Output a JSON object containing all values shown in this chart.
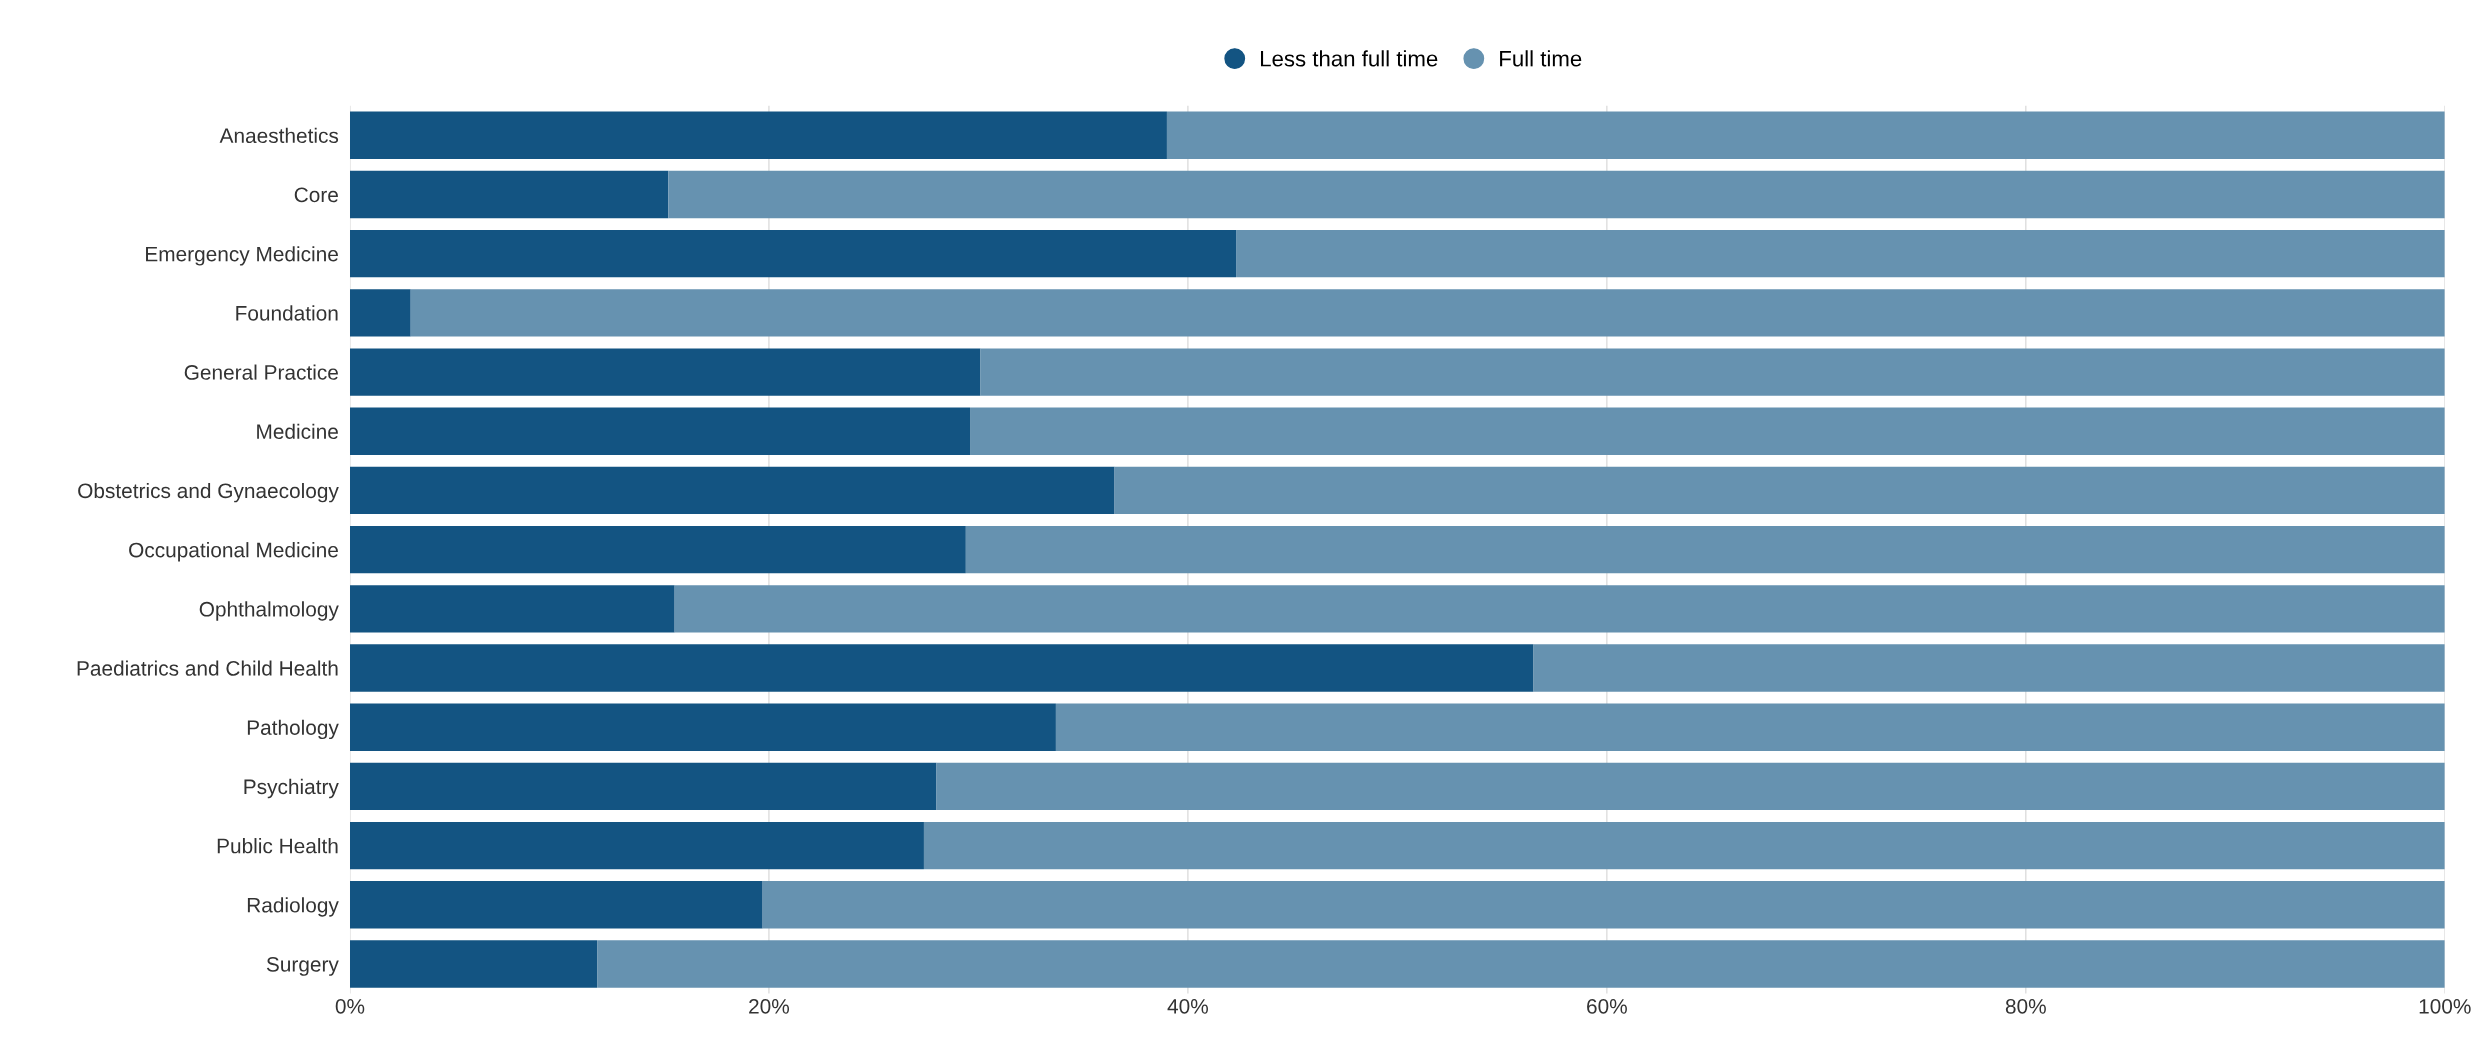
{
  "chart_data": {
    "type": "bar",
    "orientation": "horizontal",
    "stacked": true,
    "categories": [
      "Anaesthetics",
      "Core",
      "Emergency Medicine",
      "Foundation",
      "General Practice",
      "Medicine",
      "Obstetrics and Gynaecology",
      "Occupational Medicine",
      "Ophthalmology",
      "Paediatrics and Child Health",
      "Pathology",
      "Psychiatry",
      "Public Health",
      "Radiology",
      "Surgery"
    ],
    "series": [
      {
        "name": "Less than full time",
        "color": "#135482",
        "values": [
          39.0,
          15.2,
          42.3,
          2.9,
          30.1,
          29.6,
          36.5,
          29.4,
          15.5,
          56.5,
          33.7,
          28.0,
          27.4,
          19.7,
          11.8
        ]
      },
      {
        "name": "Full time",
        "color": "#6692b0",
        "values": [
          61.0,
          84.8,
          57.7,
          97.1,
          69.9,
          70.4,
          63.5,
          70.6,
          84.5,
          43.5,
          66.3,
          72.0,
          72.6,
          80.3,
          88.2
        ]
      }
    ],
    "xlim": [
      0,
      100
    ],
    "xticks": [
      {
        "value": 0,
        "label": "0%"
      },
      {
        "value": 20,
        "label": "20%"
      },
      {
        "value": 40,
        "label": "40%"
      },
      {
        "value": 60,
        "label": "60%"
      },
      {
        "value": 80,
        "label": "80%"
      },
      {
        "value": 100,
        "label": "100%"
      }
    ],
    "grid": "x",
    "legend": "top"
  }
}
